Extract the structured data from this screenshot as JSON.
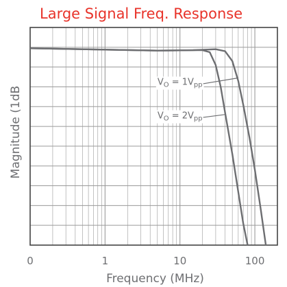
{
  "chart_data": {
    "type": "line",
    "title": "Large Signal Freq. Response",
    "xlabel": "Frequency (MHz)",
    "ylabel": "Magnitude (1dB",
    "x_scale": "log",
    "x_ticks": [
      {
        "value": 0.1,
        "label": "0"
      },
      {
        "value": 1,
        "label": "1"
      },
      {
        "value": 10,
        "label": "10"
      },
      {
        "value": 100,
        "label": "100"
      }
    ],
    "xlim": [
      0.1,
      200
    ],
    "ylim": [
      -10,
      1
    ],
    "y_tick_step": 1,
    "grid": true,
    "colors": {
      "title": "#e8332a",
      "curve": "#6d6e71",
      "grid": "#9a9a9a",
      "text": "#6d6e71"
    },
    "series": [
      {
        "label_main": "V",
        "label_sub": "O",
        "label_rest": " = 1V",
        "label_sub2": "pp",
        "points": [
          [
            0.1,
            -0.05
          ],
          [
            1,
            -0.12
          ],
          [
            5,
            -0.17
          ],
          [
            15,
            -0.15
          ],
          [
            30,
            -0.1
          ],
          [
            40,
            -0.2
          ],
          [
            50,
            -0.7
          ],
          [
            60,
            -1.7
          ],
          [
            70,
            -2.9
          ],
          [
            85,
            -4.6
          ],
          [
            100,
            -6.2
          ],
          [
            120,
            -8.2
          ],
          [
            140,
            -10.0
          ]
        ]
      },
      {
        "label_main": "V",
        "label_sub": "O",
        "label_rest": " = 2V",
        "label_sub2": "pp",
        "points": [
          [
            0.1,
            -0.05
          ],
          [
            1,
            -0.12
          ],
          [
            5,
            -0.17
          ],
          [
            15,
            -0.15
          ],
          [
            20,
            -0.15
          ],
          [
            25,
            -0.25
          ],
          [
            30,
            -0.9
          ],
          [
            35,
            -2.0
          ],
          [
            40,
            -3.3
          ],
          [
            50,
            -5.4
          ],
          [
            60,
            -7.3
          ],
          [
            70,
            -8.9
          ],
          [
            80,
            -10.0
          ]
        ]
      }
    ],
    "annotations": [
      {
        "series": 0,
        "text_pos": [
          10,
          -1.9
        ],
        "arrow_to": [
          60,
          -1.55
        ]
      },
      {
        "series": 1,
        "text_pos": [
          10,
          -3.6
        ],
        "arrow_to": [
          40,
          -3.4
        ]
      }
    ]
  }
}
